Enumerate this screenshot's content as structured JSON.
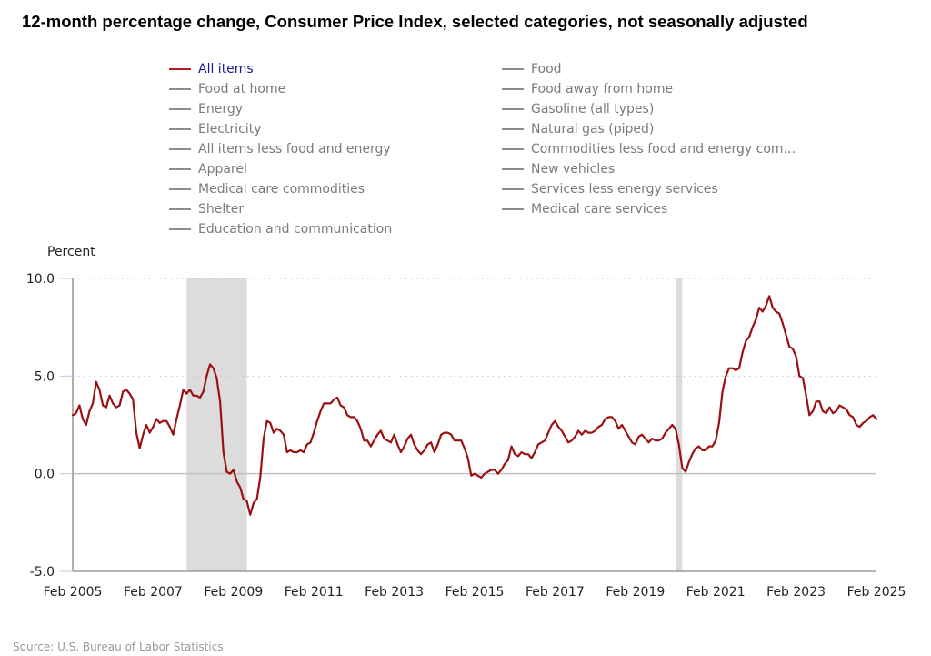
{
  "title": "12-month percentage change, Consumer Price Index, selected categories, not seasonally adjusted",
  "source": "Source: U.S. Bureau of Labor Statistics.",
  "legend": {
    "left": [
      {
        "label": "All items",
        "active": true
      },
      {
        "label": "Food at home",
        "active": false
      },
      {
        "label": "Energy",
        "active": false
      },
      {
        "label": "Electricity",
        "active": false
      },
      {
        "label": "All items less food and energy",
        "active": false
      },
      {
        "label": "Apparel",
        "active": false
      },
      {
        "label": "Medical care commodities",
        "active": false
      },
      {
        "label": "Shelter",
        "active": false
      },
      {
        "label": "Education and communication",
        "active": false
      }
    ],
    "right": [
      {
        "label": "Food",
        "active": false
      },
      {
        "label": "Food away from home",
        "active": false
      },
      {
        "label": "Gasoline (all types)",
        "active": false
      },
      {
        "label": "Natural gas (piped)",
        "active": false
      },
      {
        "label": "Commodities less food and energy com...",
        "active": false
      },
      {
        "label": "New vehicles",
        "active": false
      },
      {
        "label": "Services less energy services",
        "active": false
      },
      {
        "label": "Medical care services",
        "active": false
      }
    ]
  },
  "colors": {
    "active_series": "#9b1111",
    "active_legend_text": "#1a1a8c",
    "inactive": "#8c8c8c",
    "recession": "#dcdcdc"
  },
  "chart_data": {
    "type": "line",
    "title": "12-month percentage change, Consumer Price Index, selected categories, not seasonally adjusted",
    "ylabel": "Percent",
    "xlabel": "",
    "ylim": [
      -5.0,
      10.0
    ],
    "yticks": [
      "10.0",
      "5.0",
      "0.0",
      "-5.0"
    ],
    "ytick_values": [
      10,
      5,
      0,
      -5
    ],
    "gridlines": "dotted at 5.0 and 10.0; solid at 0.0",
    "x_start": "Feb 2005",
    "x_end": "Feb 2025",
    "xticks": [
      "Feb 2005",
      "Feb 2007",
      "Feb 2009",
      "Feb 2011",
      "Feb 2013",
      "Feb 2015",
      "Feb 2017",
      "Feb 2019",
      "Feb 2021",
      "Feb 2023",
      "Feb 2025"
    ],
    "xtick_month_index": [
      0,
      24,
      48,
      72,
      96,
      120,
      144,
      168,
      192,
      216,
      240
    ],
    "recessions": [
      {
        "start": "Dec 2007",
        "end": "Jun 2009",
        "start_index": 34,
        "end_index": 52
      },
      {
        "start": "Feb 2020",
        "end": "Apr 2020",
        "start_index": 180,
        "end_index": 182
      }
    ],
    "series": [
      {
        "name": "All items",
        "frequency": "monthly",
        "values": [
          3.0,
          3.1,
          3.5,
          2.8,
          2.5,
          3.2,
          3.6,
          4.7,
          4.3,
          3.5,
          3.4,
          4.0,
          3.6,
          3.4,
          3.5,
          4.2,
          4.3,
          4.1,
          3.8,
          2.1,
          1.3,
          2.0,
          2.5,
          2.1,
          2.4,
          2.8,
          2.6,
          2.7,
          2.7,
          2.4,
          2.0,
          2.8,
          3.5,
          4.3,
          4.1,
          4.3,
          4.0,
          4.0,
          3.9,
          4.2,
          5.0,
          5.6,
          5.4,
          4.9,
          3.7,
          1.1,
          0.1,
          0.0,
          0.2,
          -0.4,
          -0.7,
          -1.3,
          -1.4,
          -2.1,
          -1.5,
          -1.3,
          -0.2,
          1.8,
          2.7,
          2.6,
          2.1,
          2.3,
          2.2,
          2.0,
          1.1,
          1.2,
          1.1,
          1.1,
          1.2,
          1.1,
          1.5,
          1.6,
          2.1,
          2.7,
          3.2,
          3.6,
          3.6,
          3.6,
          3.8,
          3.9,
          3.5,
          3.4,
          3.0,
          2.9,
          2.9,
          2.7,
          2.3,
          1.7,
          1.7,
          1.4,
          1.7,
          2.0,
          2.2,
          1.8,
          1.7,
          1.6,
          2.0,
          1.5,
          1.1,
          1.4,
          1.8,
          2.0,
          1.5,
          1.2,
          1.0,
          1.2,
          1.5,
          1.6,
          1.1,
          1.5,
          2.0,
          2.1,
          2.1,
          2.0,
          1.7,
          1.7,
          1.7,
          1.3,
          0.8,
          -0.1,
          0.0,
          -0.1,
          -0.2,
          0.0,
          0.1,
          0.2,
          0.2,
          0.0,
          0.2,
          0.5,
          0.7,
          1.4,
          1.0,
          0.9,
          1.1,
          1.0,
          1.0,
          0.8,
          1.1,
          1.5,
          1.6,
          1.7,
          2.1,
          2.5,
          2.7,
          2.4,
          2.2,
          1.9,
          1.6,
          1.7,
          1.9,
          2.2,
          2.0,
          2.2,
          2.1,
          2.1,
          2.2,
          2.4,
          2.5,
          2.8,
          2.9,
          2.9,
          2.7,
          2.3,
          2.5,
          2.2,
          1.9,
          1.6,
          1.5,
          1.9,
          2.0,
          1.8,
          1.6,
          1.8,
          1.7,
          1.7,
          1.8,
          2.1,
          2.3,
          2.5,
          2.3,
          1.5,
          0.3,
          0.1,
          0.6,
          1.0,
          1.3,
          1.4,
          1.2,
          1.2,
          1.4,
          1.4,
          1.7,
          2.6,
          4.2,
          5.0,
          5.4,
          5.4,
          5.3,
          5.4,
          6.2,
          6.8,
          7.0,
          7.5,
          7.9,
          8.5,
          8.3,
          8.6,
          9.1,
          8.5,
          8.3,
          8.2,
          7.7,
          7.1,
          6.5,
          6.4,
          6.0,
          5.0,
          4.9,
          4.0,
          3.0,
          3.2,
          3.7,
          3.7,
          3.2,
          3.1,
          3.4,
          3.1,
          3.2,
          3.5,
          3.4,
          3.3,
          3.0,
          2.9,
          2.5,
          2.4,
          2.6,
          2.7,
          2.9,
          3.0,
          2.8
        ]
      }
    ]
  }
}
